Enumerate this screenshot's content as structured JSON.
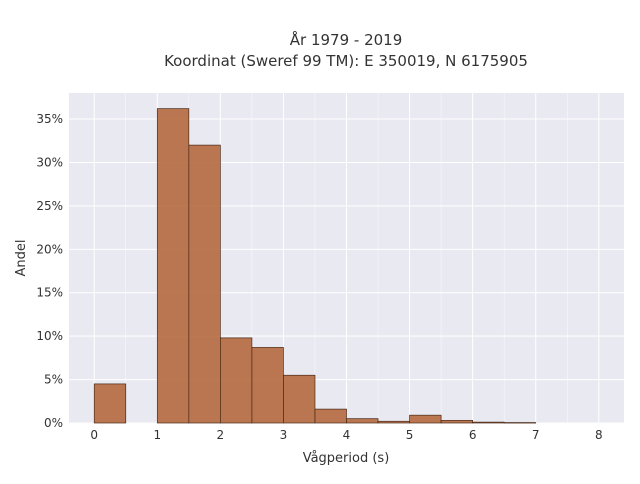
{
  "chart_data": {
    "type": "bar",
    "title_line1": "År 1979 - 2019",
    "title_line2": "Koordinat (Sweref 99 TM): E 350019, N 6175905",
    "xlabel": "Vågperiod (s)",
    "ylabel": "Andel",
    "xlim": [
      -0.4,
      8.4
    ],
    "ylim": [
      0,
      38
    ],
    "x_ticks": [
      0,
      1,
      2,
      3,
      4,
      5,
      6,
      7,
      8
    ],
    "x_tick_labels": [
      "0",
      "1",
      "2",
      "3",
      "4",
      "5",
      "6",
      "7",
      "8"
    ],
    "y_ticks": [
      0,
      5,
      10,
      15,
      20,
      25,
      30,
      35
    ],
    "y_tick_labels": [
      "0%",
      "5%",
      "10%",
      "15%",
      "20%",
      "25%",
      "30%",
      "35%"
    ],
    "bin_width": 0.5,
    "bins": [
      {
        "start": 0.0,
        "value": 4.5
      },
      {
        "start": 0.5,
        "value": 0.0
      },
      {
        "start": 1.0,
        "value": 36.2
      },
      {
        "start": 1.5,
        "value": 32.0
      },
      {
        "start": 2.0,
        "value": 9.8
      },
      {
        "start": 2.5,
        "value": 8.7
      },
      {
        "start": 3.0,
        "value": 5.5
      },
      {
        "start": 3.5,
        "value": 1.6
      },
      {
        "start": 4.0,
        "value": 0.5
      },
      {
        "start": 4.5,
        "value": 0.2
      },
      {
        "start": 5.0,
        "value": 0.9
      },
      {
        "start": 5.5,
        "value": 0.3
      },
      {
        "start": 6.0,
        "value": 0.1
      },
      {
        "start": 6.5,
        "value": 0.05
      }
    ],
    "grid": true,
    "colors": {
      "bar_fill": "#b5693e",
      "bar_stroke": "#4a2a18",
      "plot_background": "#e9e9f2",
      "grid": "#ffffff"
    }
  }
}
